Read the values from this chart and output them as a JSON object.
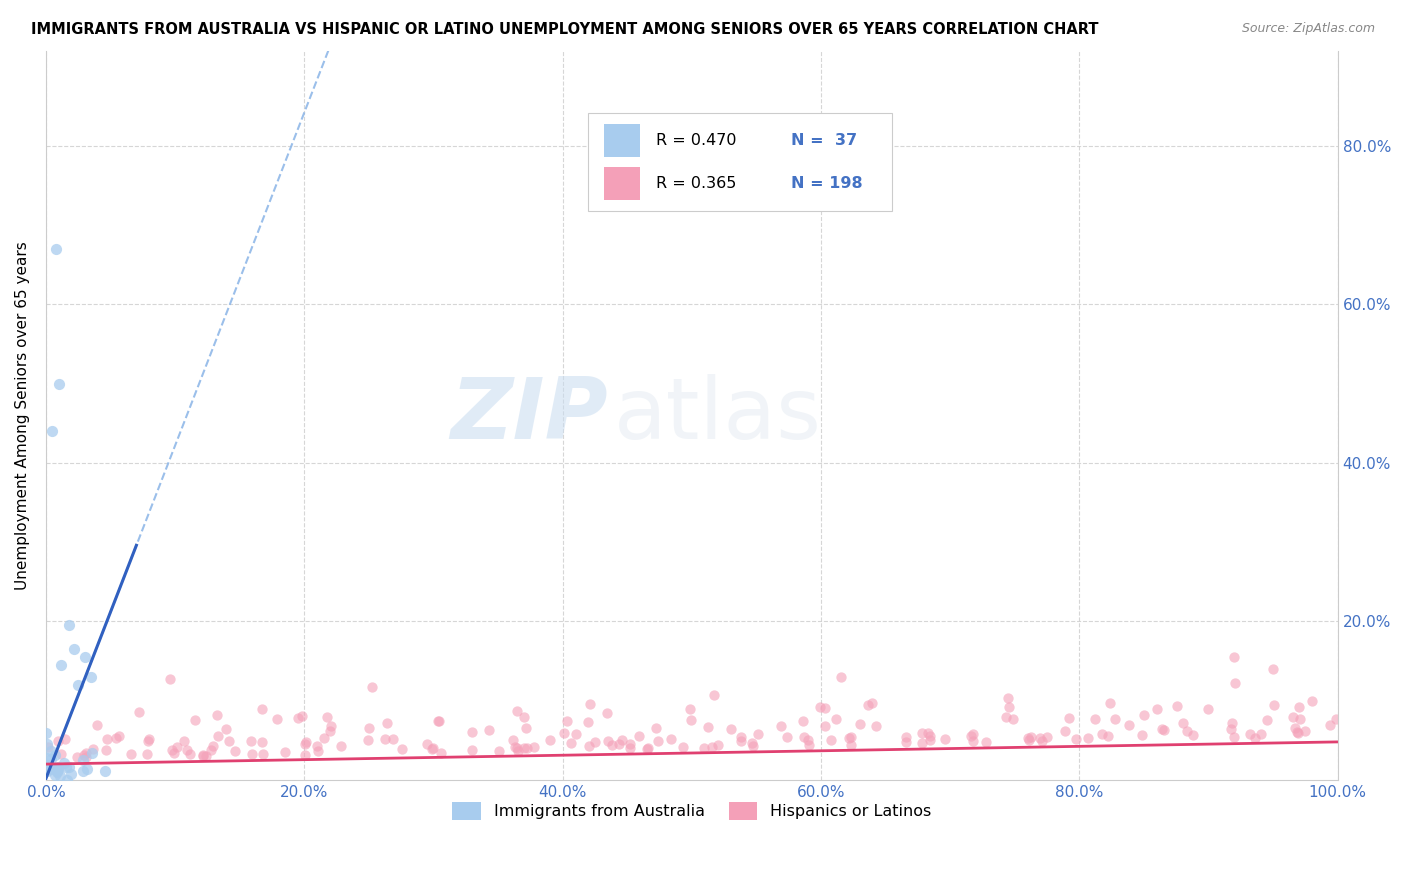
{
  "title": "IMMIGRANTS FROM AUSTRALIA VS HISPANIC OR LATINO UNEMPLOYMENT AMONG SENIORS OVER 65 YEARS CORRELATION CHART",
  "source": "Source: ZipAtlas.com",
  "ylabel": "Unemployment Among Seniors over 65 years",
  "xlim": [
    0,
    1.0
  ],
  "ylim": [
    0,
    0.92
  ],
  "xtick_vals": [
    0.0,
    0.2,
    0.4,
    0.6,
    0.8,
    1.0
  ],
  "xtick_labels": [
    "0.0%",
    "20.0%",
    "40.0%",
    "60.0%",
    "80.0%",
    "100.0%"
  ],
  "ytick_vals": [
    0.2,
    0.4,
    0.6,
    0.8
  ],
  "ytick_labels_right": [
    "20.0%",
    "40.0%",
    "60.0%",
    "80.0%"
  ],
  "color_blue": "#A8CCEE",
  "color_pink": "#F4A0B8",
  "line_blue_solid": "#3060C0",
  "line_blue_dash": "#90B8E8",
  "line_pink": "#E04070",
  "watermark_zip": "ZIP",
  "watermark_atlas": "atlas",
  "legend_items": [
    {
      "r": "R = 0.470",
      "n": "N =  37",
      "color": "#A8CCEE"
    },
    {
      "r": "R = 0.365",
      "n": "N = 198",
      "color": "#F4A0B8"
    }
  ]
}
